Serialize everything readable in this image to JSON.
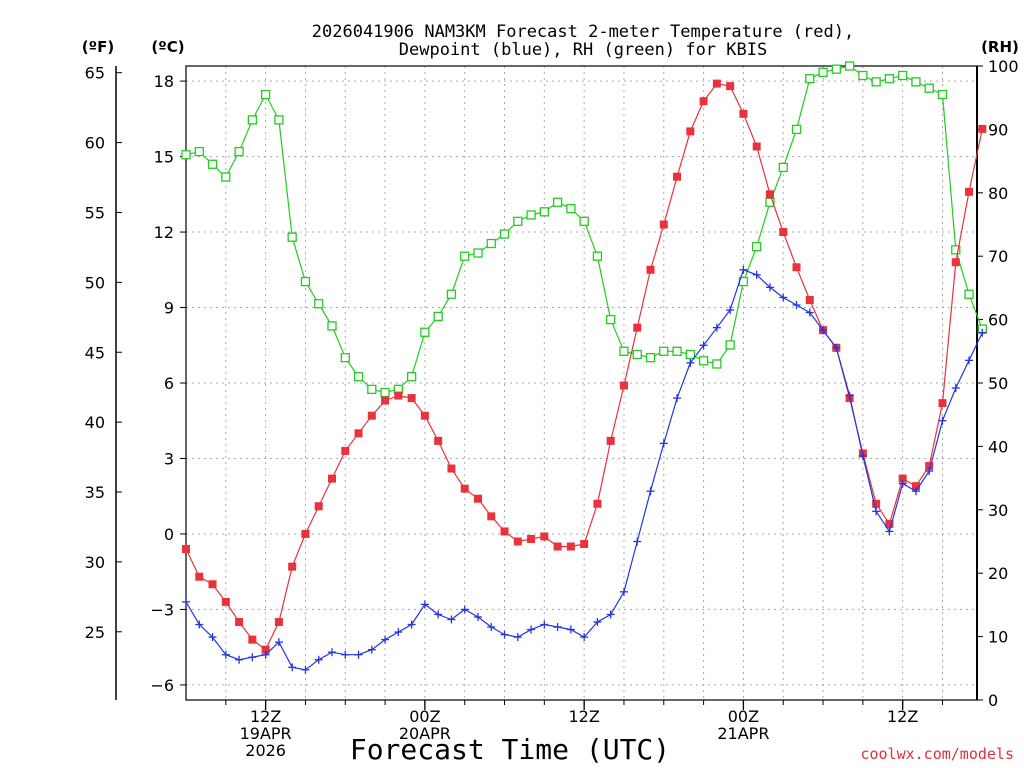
{
  "chart_data": {
    "type": "line",
    "title_line1": "2026041906 NAM3KM Forecast 2-meter Temperature (red),",
    "title_line2": "Dewpoint (blue), RH (green) for KBIS",
    "xlabel": "Forecast Time (UTC)",
    "left_unit_f": "(ºF)",
    "left_unit_c": "(ºC)",
    "right_unit": "(RH)",
    "ylim_c": [
      -6.6,
      18.6
    ],
    "ylim_rh": [
      0,
      100
    ],
    "c_ticks": [
      "18",
      "15",
      "12",
      "9",
      "6",
      "3",
      "0",
      "−3",
      "−6"
    ],
    "f_ticks": [
      "65",
      "60",
      "55",
      "50",
      "45",
      "40",
      "35",
      "30",
      "25"
    ],
    "rh_ticks": [
      "100",
      "90",
      "80",
      "70",
      "60",
      "50",
      "40",
      "30",
      "20",
      "10",
      "0"
    ],
    "x_ticks": [
      {
        "hour": 6,
        "lines": [
          "12Z",
          "19APR",
          "2026"
        ]
      },
      {
        "hour": 18,
        "lines": [
          "00Z",
          "20APR"
        ]
      },
      {
        "hour": 30,
        "lines": [
          "12Z"
        ]
      },
      {
        "hour": 42,
        "lines": [
          "00Z",
          "21APR"
        ]
      },
      {
        "hour": 54,
        "lines": [
          "12Z"
        ]
      }
    ],
    "x_range_hours": [
      0,
      59.6
    ],
    "series": [
      {
        "name": "2-meter Temperature",
        "unit": "C",
        "color": "#e8323c",
        "marker": "filled-square",
        "values": [
          -0.6,
          -1.7,
          -2.0,
          -2.7,
          -3.5,
          -4.2,
          -4.6,
          -3.5,
          -1.3,
          0.0,
          1.1,
          2.2,
          3.3,
          4.0,
          4.7,
          5.3,
          5.5,
          5.4,
          4.7,
          3.7,
          2.6,
          1.8,
          1.4,
          0.7,
          0.1,
          -0.3,
          -0.2,
          -0.1,
          -0.5,
          -0.5,
          -0.4,
          1.2,
          3.7,
          5.9,
          8.2,
          10.5,
          12.3,
          14.2,
          16.0,
          17.2,
          17.9,
          17.8,
          16.7,
          15.4,
          13.5,
          12.0,
          10.6,
          9.3,
          8.1,
          7.4,
          5.4,
          3.2,
          1.2,
          0.4,
          2.2,
          1.9,
          2.7,
          5.2,
          10.8,
          13.6,
          16.1
        ]
      },
      {
        "name": "Dewpoint",
        "unit": "C",
        "color": "#2235e0",
        "marker": "plus",
        "values": [
          -2.7,
          -3.6,
          -4.1,
          -4.8,
          -5.0,
          -4.9,
          -4.8,
          -4.3,
          -5.3,
          -5.4,
          -5.0,
          -4.7,
          -4.8,
          -4.8,
          -4.6,
          -4.2,
          -3.9,
          -3.6,
          -2.8,
          -3.2,
          -3.4,
          -3.0,
          -3.3,
          -3.7,
          -4.0,
          -4.1,
          -3.8,
          -3.6,
          -3.7,
          -3.8,
          -4.1,
          -3.5,
          -3.2,
          -2.3,
          -0.3,
          1.7,
          3.6,
          5.4,
          6.8,
          7.5,
          8.2,
          8.9,
          10.5,
          10.3,
          9.8,
          9.4,
          9.1,
          8.8,
          8.1,
          7.4,
          5.5,
          3.1,
          0.9,
          0.1,
          2.0,
          1.7,
          2.5,
          4.5,
          5.8,
          6.9,
          8.0
        ]
      },
      {
        "name": "Relative Humidity",
        "unit": "%",
        "color": "#22cc22",
        "marker": "open-square",
        "values": [
          86,
          86.5,
          84.5,
          82.5,
          86.5,
          91.5,
          95.5,
          91.5,
          73,
          66,
          62.5,
          59,
          54,
          51,
          49,
          48.5,
          49,
          51,
          58,
          60.5,
          64,
          70,
          70.5,
          72,
          73.5,
          75.5,
          76.5,
          77,
          78.5,
          77.5,
          75.5,
          70,
          60,
          55,
          54.5,
          54,
          55,
          55,
          54.5,
          53.5,
          53,
          56,
          66,
          71.5,
          78.5,
          84,
          90,
          98,
          99,
          99.5,
          100,
          98.5,
          97.5,
          98,
          98.5,
          97.5,
          96.5,
          95.5,
          71,
          64,
          58.5
        ]
      }
    ]
  },
  "footer": "coolwx.com/models"
}
